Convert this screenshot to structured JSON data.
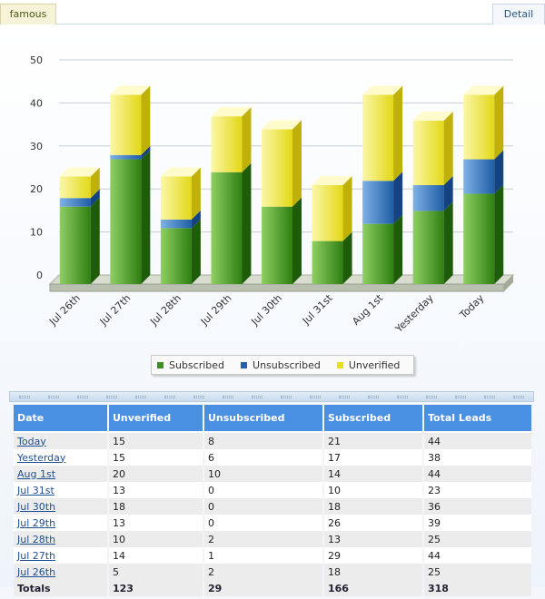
{
  "tabs": {
    "left_label": "famous",
    "right_label": "Detail"
  },
  "colors": {
    "subscribed": "#3f8f1d",
    "unsubscribed": "#2563a8",
    "unverified": "#e8e01a",
    "header_bg": "#4a90e2"
  },
  "chart_data": {
    "type": "bar",
    "stacked": true,
    "categories": [
      "Jul 26th",
      "Jul 27th",
      "Jul 28th",
      "Jul 29th",
      "Jul 30th",
      "Jul 31st",
      "Aug 1st",
      "Yesterday",
      "Today"
    ],
    "series": [
      {
        "name": "Subscribed",
        "values": [
          18,
          29,
          13,
          26,
          18,
          10,
          14,
          17,
          21
        ]
      },
      {
        "name": "Unsubscribed",
        "values": [
          2,
          1,
          2,
          0,
          0,
          0,
          10,
          6,
          8
        ]
      },
      {
        "name": "Unverified",
        "values": [
          5,
          14,
          10,
          13,
          18,
          13,
          20,
          15,
          15
        ]
      }
    ],
    "yticks": [
      "0",
      "10",
      "20",
      "30",
      "40",
      "50"
    ],
    "ylim": [
      0,
      50
    ],
    "grid": true,
    "legend_position": "bottom"
  },
  "table": {
    "headers": [
      "Date",
      "Unverified",
      "Unsubscribed",
      "Subscribed",
      "Total Leads"
    ],
    "rows": [
      [
        "Today",
        "15",
        "8",
        "21",
        "44"
      ],
      [
        "Yesterday",
        "15",
        "6",
        "17",
        "38"
      ],
      [
        "Aug 1st",
        "20",
        "10",
        "14",
        "44"
      ],
      [
        "Jul 31st",
        "13",
        "0",
        "10",
        "23"
      ],
      [
        "Jul 30th",
        "18",
        "0",
        "18",
        "36"
      ],
      [
        "Jul 29th",
        "13",
        "0",
        "26",
        "39"
      ],
      [
        "Jul 28th",
        "10",
        "2",
        "13",
        "25"
      ],
      [
        "Jul 27th",
        "14",
        "1",
        "29",
        "44"
      ],
      [
        "Jul 26th",
        "5",
        "2",
        "18",
        "25"
      ]
    ],
    "totals": [
      "Totals",
      "123",
      "29",
      "166",
      "318"
    ]
  }
}
